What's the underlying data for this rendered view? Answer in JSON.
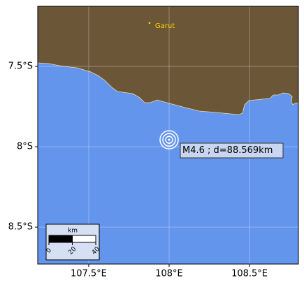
{
  "map": {
    "xlim": [
      107.183,
      108.804
    ],
    "ylim": [
      -8.73,
      -7.126
    ],
    "xticks": [
      {
        "value": 107.5,
        "label": "107.5°E"
      },
      {
        "value": 108,
        "label": "108°E"
      },
      {
        "value": 108.5,
        "label": "108.5°E"
      }
    ],
    "yticks": [
      {
        "value": -7.5,
        "label": "7.5°S"
      },
      {
        "value": -8,
        "label": "8°S"
      },
      {
        "value": -8.5,
        "label": "8.5°S"
      }
    ],
    "grid": true,
    "city": {
      "name": "Garut",
      "lon": 107.878,
      "lat": -7.23
    },
    "event": {
      "label": "M4.6 ; d=88.569km",
      "lon": 108.0,
      "lat": -7.957
    },
    "scale_bar": {
      "unit": "km",
      "ticks": [
        0,
        20,
        40
      ]
    }
  }
}
